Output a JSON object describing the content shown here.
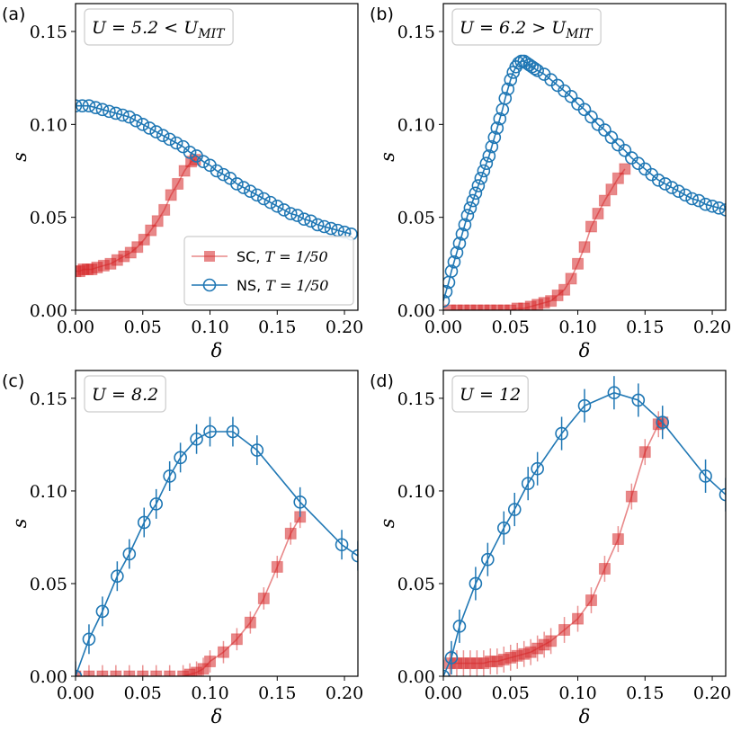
{
  "colors": {
    "sc": "#d62728",
    "ns": "#1f77b4",
    "sc_fill": "#f08080"
  },
  "chart_data": [
    {
      "type": "scatter",
      "panel_label": "(a)",
      "annotation": "U = 5.2 < U_MIT",
      "xlabel": "δ",
      "ylabel": "s",
      "xlim": [
        0,
        0.21
      ],
      "ylim": [
        0,
        0.165
      ],
      "xticks": [
        "0.00",
        "0.05",
        "0.10",
        "0.15",
        "0.20"
      ],
      "yticks": [
        "0.00",
        "0.05",
        "0.10",
        "0.15"
      ],
      "legend": {
        "position": "lower-right",
        "entries": [
          "SC, T = 1/50",
          "NS, T = 1/50"
        ]
      },
      "series": [
        {
          "name": "SC, T = 1/50",
          "x": [
            0.0,
            0.003,
            0.006,
            0.009,
            0.012,
            0.016,
            0.021,
            0.026,
            0.031,
            0.036,
            0.041,
            0.046,
            0.051,
            0.056,
            0.061,
            0.066,
            0.071,
            0.076,
            0.081,
            0.086,
            0.089
          ],
          "y": [
            0.021,
            0.021,
            0.022,
            0.022,
            0.022,
            0.023,
            0.024,
            0.025,
            0.027,
            0.029,
            0.031,
            0.034,
            0.038,
            0.043,
            0.048,
            0.054,
            0.062,
            0.068,
            0.075,
            0.08,
            0.081
          ]
        },
        {
          "name": "NS, T = 1/50",
          "x": [
            0.0,
            0.005,
            0.01,
            0.015,
            0.02,
            0.025,
            0.03,
            0.035,
            0.04,
            0.045,
            0.05,
            0.055,
            0.06,
            0.065,
            0.07,
            0.075,
            0.08,
            0.085,
            0.09,
            0.095,
            0.1,
            0.105,
            0.11,
            0.115,
            0.12,
            0.125,
            0.13,
            0.135,
            0.14,
            0.145,
            0.15,
            0.155,
            0.16,
            0.165,
            0.17,
            0.175,
            0.18,
            0.185,
            0.19,
            0.195,
            0.2,
            0.205
          ],
          "y": [
            0.11,
            0.11,
            0.11,
            0.109,
            0.108,
            0.107,
            0.106,
            0.105,
            0.104,
            0.102,
            0.1,
            0.098,
            0.096,
            0.094,
            0.092,
            0.09,
            0.088,
            0.085,
            0.083,
            0.08,
            0.078,
            0.075,
            0.073,
            0.071,
            0.068,
            0.066,
            0.064,
            0.062,
            0.06,
            0.058,
            0.056,
            0.054,
            0.052,
            0.051,
            0.049,
            0.048,
            0.046,
            0.045,
            0.044,
            0.043,
            0.042,
            0.041
          ]
        }
      ]
    },
    {
      "type": "scatter",
      "panel_label": "(b)",
      "annotation": "U = 6.2 > U_MIT",
      "xlabel": "δ",
      "ylabel": "s",
      "xlim": [
        0,
        0.21
      ],
      "ylim": [
        0,
        0.165
      ],
      "xticks": [
        "0.00",
        "0.05",
        "0.10",
        "0.15",
        "0.20"
      ],
      "yticks": [
        "0.00",
        "0.05",
        "0.10",
        "0.15"
      ],
      "series": [
        {
          "name": "SC, T = 1/50",
          "x": [
            0.005,
            0.01,
            0.015,
            0.02,
            0.025,
            0.03,
            0.035,
            0.04,
            0.045,
            0.05,
            0.055,
            0.06,
            0.065,
            0.07,
            0.075,
            0.08,
            0.085,
            0.09,
            0.095,
            0.1,
            0.105,
            0.11,
            0.115,
            0.12,
            0.125,
            0.13,
            0.135
          ],
          "y": [
            0.0,
            0.0,
            0.0,
            0.0,
            0.0,
            0.0,
            0.0,
            0.0,
            0.0,
            0.0,
            0.001,
            0.001,
            0.002,
            0.003,
            0.004,
            0.005,
            0.008,
            0.011,
            0.017,
            0.025,
            0.034,
            0.045,
            0.052,
            0.059,
            0.065,
            0.071,
            0.076
          ]
        },
        {
          "name": "NS, T = 1/50",
          "x": [
            0.0,
            0.002,
            0.004,
            0.006,
            0.008,
            0.01,
            0.012,
            0.014,
            0.016,
            0.018,
            0.02,
            0.022,
            0.024,
            0.026,
            0.028,
            0.03,
            0.032,
            0.034,
            0.036,
            0.038,
            0.04,
            0.042,
            0.044,
            0.046,
            0.048,
            0.05,
            0.052,
            0.054,
            0.056,
            0.058,
            0.06,
            0.062,
            0.064,
            0.066,
            0.068,
            0.07,
            0.075,
            0.08,
            0.085,
            0.09,
            0.095,
            0.1,
            0.105,
            0.11,
            0.115,
            0.12,
            0.125,
            0.13,
            0.135,
            0.14,
            0.145,
            0.15,
            0.155,
            0.16,
            0.165,
            0.17,
            0.175,
            0.18,
            0.185,
            0.19,
            0.195,
            0.2,
            0.205,
            0.21
          ],
          "y": [
            0.005,
            0.01,
            0.015,
            0.021,
            0.026,
            0.031,
            0.036,
            0.041,
            0.046,
            0.051,
            0.055,
            0.059,
            0.063,
            0.067,
            0.071,
            0.075,
            0.079,
            0.083,
            0.088,
            0.093,
            0.098,
            0.103,
            0.108,
            0.114,
            0.119,
            0.124,
            0.128,
            0.131,
            0.133,
            0.134,
            0.134,
            0.133,
            0.132,
            0.131,
            0.13,
            0.129,
            0.127,
            0.124,
            0.121,
            0.118,
            0.115,
            0.111,
            0.108,
            0.104,
            0.1,
            0.097,
            0.093,
            0.089,
            0.086,
            0.082,
            0.079,
            0.076,
            0.073,
            0.07,
            0.068,
            0.066,
            0.064,
            0.062,
            0.06,
            0.059,
            0.057,
            0.056,
            0.055,
            0.054
          ]
        }
      ]
    },
    {
      "type": "scatter",
      "panel_label": "(c)",
      "annotation": "U = 8.2",
      "xlabel": "δ",
      "ylabel": "s",
      "xlim": [
        0,
        0.21
      ],
      "ylim": [
        0,
        0.165
      ],
      "xticks": [
        "0.00",
        "0.05",
        "0.10",
        "0.15",
        "0.20"
      ],
      "yticks": [
        "0.00",
        "0.05",
        "0.10",
        "0.15"
      ],
      "series": [
        {
          "name": "SC, T = 1/50",
          "error": 0.006,
          "x": [
            0.0,
            0.01,
            0.02,
            0.03,
            0.04,
            0.05,
            0.06,
            0.07,
            0.08,
            0.085,
            0.09,
            0.095,
            0.1,
            0.11,
            0.12,
            0.13,
            0.14,
            0.15,
            0.16,
            0.167
          ],
          "y": [
            0.0,
            0.0,
            0.0,
            0.0,
            0.0,
            0.0,
            0.0,
            0.0,
            0.0,
            0.001,
            0.002,
            0.004,
            0.008,
            0.013,
            0.02,
            0.029,
            0.042,
            0.059,
            0.077,
            0.086
          ]
        },
        {
          "name": "NS, T = 1/50",
          "error": 0.008,
          "x": [
            0.0,
            0.01,
            0.02,
            0.031,
            0.04,
            0.051,
            0.06,
            0.07,
            0.078,
            0.09,
            0.1,
            0.117,
            0.135,
            0.167,
            0.198,
            0.21
          ],
          "y": [
            0.0,
            0.02,
            0.035,
            0.054,
            0.066,
            0.083,
            0.093,
            0.108,
            0.118,
            0.128,
            0.132,
            0.132,
            0.122,
            0.094,
            0.071,
            0.065
          ]
        }
      ]
    },
    {
      "type": "scatter",
      "panel_label": "(d)",
      "annotation": "U = 12",
      "xlabel": "δ",
      "ylabel": "s",
      "xlim": [
        0,
        0.21
      ],
      "ylim": [
        0,
        0.165
      ],
      "xticks": [
        "0.00",
        "0.05",
        "0.10",
        "0.15",
        "0.20"
      ],
      "yticks": [
        "0.00",
        "0.05",
        "0.10",
        "0.15"
      ],
      "series": [
        {
          "name": "SC, T = 1/50",
          "error": 0.007,
          "x": [
            0.005,
            0.01,
            0.015,
            0.02,
            0.025,
            0.03,
            0.035,
            0.04,
            0.045,
            0.05,
            0.055,
            0.06,
            0.065,
            0.07,
            0.075,
            0.08,
            0.09,
            0.1,
            0.11,
            0.12,
            0.13,
            0.14,
            0.15,
            0.16,
            0.163
          ],
          "y": [
            0.007,
            0.007,
            0.007,
            0.007,
            0.007,
            0.007,
            0.008,
            0.008,
            0.009,
            0.01,
            0.011,
            0.012,
            0.013,
            0.015,
            0.017,
            0.019,
            0.025,
            0.031,
            0.041,
            0.058,
            0.074,
            0.097,
            0.121,
            0.136,
            0.137
          ]
        },
        {
          "name": "NS, T = 1/50",
          "error": 0.009,
          "x": [
            0.0,
            0.006,
            0.012,
            0.024,
            0.033,
            0.045,
            0.053,
            0.063,
            0.07,
            0.088,
            0.105,
            0.127,
            0.145,
            0.163,
            0.195,
            0.21
          ],
          "y": [
            0.0,
            0.01,
            0.027,
            0.05,
            0.063,
            0.08,
            0.09,
            0.104,
            0.112,
            0.131,
            0.146,
            0.153,
            0.149,
            0.137,
            0.108,
            0.098
          ]
        }
      ]
    }
  ]
}
